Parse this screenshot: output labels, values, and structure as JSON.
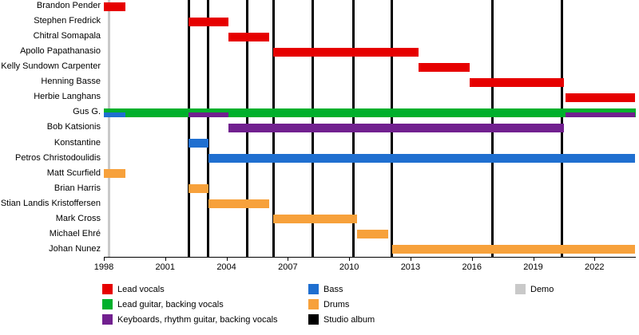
{
  "chart_data": {
    "type": "timeline",
    "description": "Band members timeline (Gantt-style) with vertical release markers",
    "x_axis": {
      "min": 1998,
      "max": 2024,
      "ticks": [
        1998,
        2001,
        2004,
        2007,
        2010,
        2013,
        2016,
        2019,
        2022
      ]
    },
    "roles": {
      "lead_vocals": {
        "label": "Lead vocals",
        "color": "#e60000"
      },
      "lead_guitar": {
        "label": "Lead guitar, backing vocals",
        "color": "#00b02c"
      },
      "keyboards": {
        "label": "Keyboards, rhythm guitar, backing vocals",
        "color": "#71208f"
      },
      "bass": {
        "label": "Bass",
        "color": "#1f6fd0"
      },
      "drums": {
        "label": "Drums",
        "color": "#f7a13b"
      },
      "studio_album": {
        "label": "Studio album",
        "color": "#000000"
      },
      "demo": {
        "label": "Demo",
        "color": "#c9c9c9"
      }
    },
    "members": [
      {
        "name": "Brandon Pender",
        "bars": [
          {
            "role": "lead_vocals",
            "start": 1998.0,
            "end": 1999.05,
            "layer": "full"
          }
        ]
      },
      {
        "name": "Stephen Fredrick",
        "bars": [
          {
            "role": "lead_vocals",
            "start": 2002.15,
            "end": 2004.1,
            "layer": "full"
          }
        ]
      },
      {
        "name": "Chitral Somapala",
        "bars": [
          {
            "role": "lead_vocals",
            "start": 2004.1,
            "end": 2006.1,
            "layer": "full"
          }
        ]
      },
      {
        "name": "Apollo Papathanasio",
        "bars": [
          {
            "role": "lead_vocals",
            "start": 2006.3,
            "end": 2013.4,
            "layer": "full"
          }
        ]
      },
      {
        "name": "Kelly Sundown Carpenter",
        "bars": [
          {
            "role": "lead_vocals",
            "start": 2013.4,
            "end": 2015.9,
            "layer": "full"
          }
        ]
      },
      {
        "name": "Henning Basse",
        "bars": [
          {
            "role": "lead_vocals",
            "start": 2015.9,
            "end": 2020.5,
            "layer": "full"
          }
        ]
      },
      {
        "name": "Herbie Langhans",
        "bars": [
          {
            "role": "lead_vocals",
            "start": 2020.6,
            "end": 2024.0,
            "layer": "full"
          }
        ]
      },
      {
        "name": "Gus G.",
        "bars": [
          {
            "role": "lead_guitar",
            "start": 1998.0,
            "end": 2024.0,
            "layer": "full"
          },
          {
            "role": "bass",
            "start": 1998.0,
            "end": 1999.05,
            "layer": "bottom"
          },
          {
            "role": "keyboards",
            "start": 2002.15,
            "end": 2004.1,
            "layer": "bottom"
          },
          {
            "role": "keyboards",
            "start": 2020.6,
            "end": 2024.0,
            "layer": "bottom"
          }
        ]
      },
      {
        "name": "Bob Katsionis",
        "bars": [
          {
            "role": "keyboards",
            "start": 2004.1,
            "end": 2020.5,
            "layer": "full"
          }
        ]
      },
      {
        "name": "Konstantine",
        "bars": [
          {
            "role": "bass",
            "start": 2002.15,
            "end": 2003.1,
            "layer": "full"
          }
        ]
      },
      {
        "name": "Petros Christodoulidis",
        "bars": [
          {
            "role": "bass",
            "start": 2003.1,
            "end": 2024.0,
            "layer": "full"
          }
        ]
      },
      {
        "name": "Matt Scurfield",
        "bars": [
          {
            "role": "drums",
            "start": 1998.0,
            "end": 1999.05,
            "layer": "full"
          }
        ]
      },
      {
        "name": "Brian Harris",
        "bars": [
          {
            "role": "drums",
            "start": 2002.15,
            "end": 2003.1,
            "layer": "full"
          }
        ]
      },
      {
        "name": "Stian Landis Kristoffersen",
        "bars": [
          {
            "role": "drums",
            "start": 2003.1,
            "end": 2006.1,
            "layer": "full"
          }
        ]
      },
      {
        "name": "Mark Cross",
        "bars": [
          {
            "role": "drums",
            "start": 2006.3,
            "end": 2010.4,
            "layer": "full"
          }
        ]
      },
      {
        "name": "Michael Ehré",
        "bars": [
          {
            "role": "drums",
            "start": 2010.4,
            "end": 2011.9,
            "layer": "full"
          }
        ]
      },
      {
        "name": "Johan Nunez",
        "bars": [
          {
            "role": "drums",
            "start": 2012.1,
            "end": 2024.0,
            "layer": "full"
          }
        ]
      }
    ],
    "events": {
      "studio_albums": [
        2002.15,
        2003.1,
        2005.0,
        2006.3,
        2008.2,
        2010.2,
        2012.1,
        2017.0,
        2020.4
      ],
      "demos": [
        1998.25
      ]
    },
    "legend": {
      "columns": [
        {
          "items": [
            "lead_vocals",
            "lead_guitar",
            "keyboards"
          ]
        },
        {
          "items": [
            "bass",
            "drums",
            "studio_album"
          ]
        },
        {
          "items": [
            "demo"
          ]
        }
      ]
    }
  }
}
